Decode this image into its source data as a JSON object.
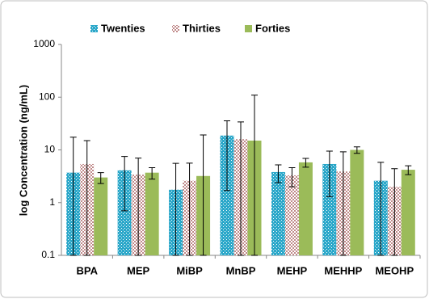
{
  "chart_data": {
    "type": "bar",
    "y_scale": "log",
    "y_label": "log Concentration (ng/mL)",
    "categories": [
      "BPA",
      "MEP",
      "MiBP",
      "MnBP",
      "MEHP",
      "MEHHP",
      "MEOHP"
    ],
    "series": [
      {
        "name": "Twenties",
        "color": "#2aa7c9",
        "values": [
          3.7,
          4.1,
          1.76,
          18.7,
          3.8,
          5.4,
          2.6
        ],
        "errors": [
          13.7,
          3.4,
          3.8,
          17,
          1.4,
          4.1,
          3.2
        ]
      },
      {
        "name": "Thirties",
        "color": "#c08a8a",
        "values": [
          5.4,
          3.4,
          2.6,
          16,
          3.3,
          3.9,
          2.0
        ],
        "errors": [
          9.6,
          3.6,
          3,
          18,
          1.3,
          5.3,
          2.4
        ]
      },
      {
        "name": "Forties",
        "color": "#9bbb59",
        "values": [
          3.0,
          3.7,
          3.2,
          15,
          5.8,
          10,
          4.2
        ],
        "errors": [
          0.7,
          0.9,
          16,
          94,
          1.1,
          1.4,
          0.8
        ]
      }
    ],
    "ylim": [
      0.1,
      1000
    ],
    "yticks": [
      0.1,
      1,
      10,
      100,
      1000
    ],
    "legend": "top"
  }
}
